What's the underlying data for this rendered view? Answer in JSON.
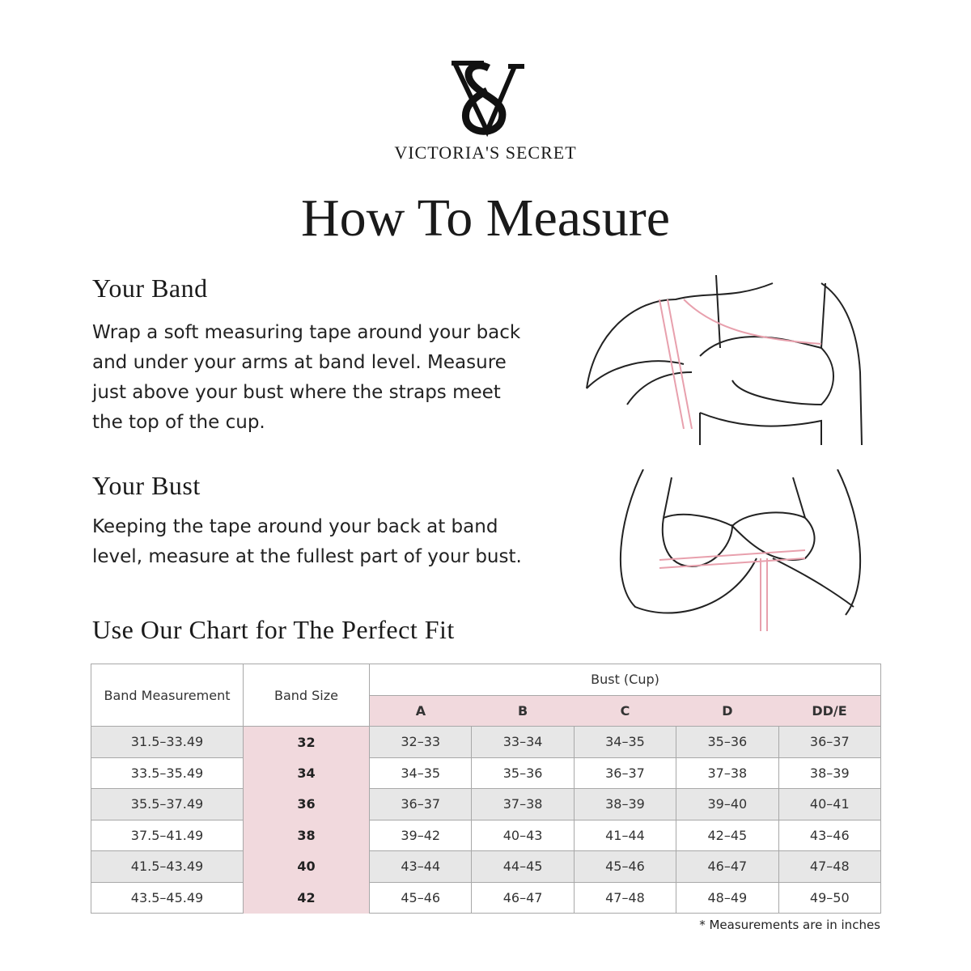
{
  "brand": {
    "name": "VICTORIA'S SECRET",
    "logo": "VS monogram"
  },
  "title": "How To Measure",
  "band": {
    "heading": "Your Band",
    "lines": [
      "Wrap a soft measuring tape around your back",
      "and under your arms at band level.  Measure",
      "just above your bust where the straps meet",
      "the top of the cup."
    ]
  },
  "bust": {
    "heading": "Your Bust",
    "lines": [
      "Keeping the tape around your back at band",
      "level, measure at the fullest part of your bust."
    ]
  },
  "chart_heading": "Use Our Chart for The Perfect Fit",
  "table": {
    "col_band_measurement": "Band Measurement",
    "col_band_size": "Band Size",
    "col_bust": "Bust (Cup)",
    "cups": [
      "A",
      "B",
      "C",
      "D",
      "DD/E"
    ],
    "rows": [
      {
        "measure": "31.5–33.49",
        "size": "32",
        "cups": [
          "32–33",
          "33–34",
          "34–35",
          "35–36",
          "36–37"
        ]
      },
      {
        "measure": "33.5–35.49",
        "size": "34",
        "cups": [
          "34–35",
          "35–36",
          "36–37",
          "37–38",
          "38–39"
        ]
      },
      {
        "measure": "35.5–37.49",
        "size": "36",
        "cups": [
          "36–37",
          "37–38",
          "38–39",
          "39–40",
          "40–41"
        ]
      },
      {
        "measure": "37.5–41.49",
        "size": "38",
        "cups": [
          "39–42",
          "40–43",
          "41–44",
          "42–45",
          "43–46"
        ]
      },
      {
        "measure": "41.5–43.49",
        "size": "40",
        "cups": [
          "43–44",
          "44–45",
          "45–46",
          "46–47",
          "47–48"
        ]
      },
      {
        "measure": "43.5–45.49",
        "size": "42",
        "cups": [
          "45–46",
          "46–47",
          "47–48",
          "48–49",
          "49–50"
        ]
      }
    ]
  },
  "note": "* Measurements are in inches",
  "colors": {
    "pink": "#f1d9dd",
    "grey": "#e7e7e7",
    "tape": "#e8a0ad"
  }
}
